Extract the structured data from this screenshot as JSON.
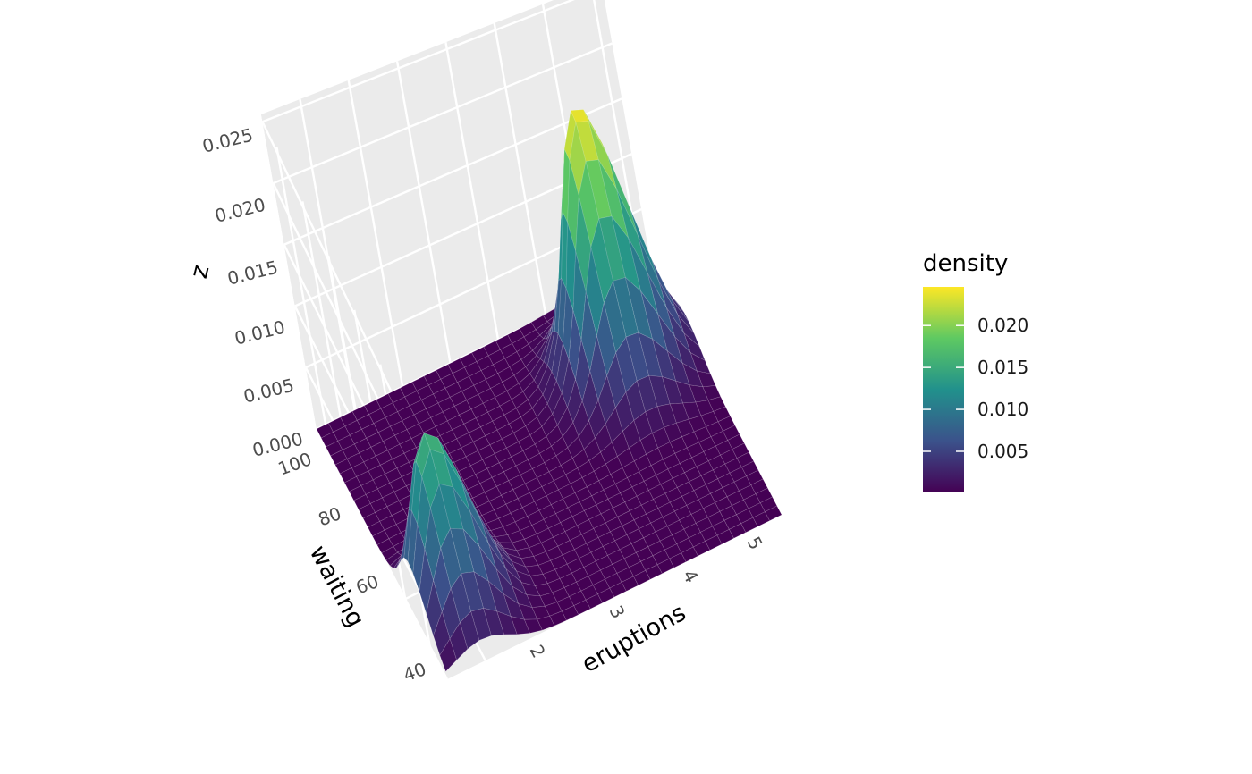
{
  "chart_data": {
    "type": "surface",
    "x": {
      "title": "eruptions",
      "ticks": [
        2,
        3,
        4,
        5
      ],
      "range": [
        1.6,
        5.1
      ]
    },
    "y": {
      "title": "waiting",
      "ticks": [
        40,
        60,
        80,
        100
      ],
      "range": [
        43,
        96
      ]
    },
    "z": {
      "title": "z",
      "ticks": [
        "0.000",
        "0.005",
        "0.010",
        "0.015",
        "0.020",
        "0.025"
      ],
      "range": [
        0,
        0.0256
      ]
    },
    "peaks": [
      {
        "eruptions": 4.4,
        "waiting": 80,
        "density": 0.0245
      },
      {
        "eruptions": 2.0,
        "waiting": 54,
        "density": 0.016
      }
    ],
    "legend": {
      "title": "density",
      "labels": [
        "0.005",
        "0.010",
        "0.015",
        "0.020"
      ],
      "values": [
        0.005,
        0.01,
        0.015,
        0.02
      ],
      "min": 0.0001,
      "max": 0.0246,
      "position": "right",
      "colors": [
        "#440154",
        "#3b528b",
        "#21918c",
        "#5ec962",
        "#fde725"
      ]
    },
    "grid": true
  }
}
